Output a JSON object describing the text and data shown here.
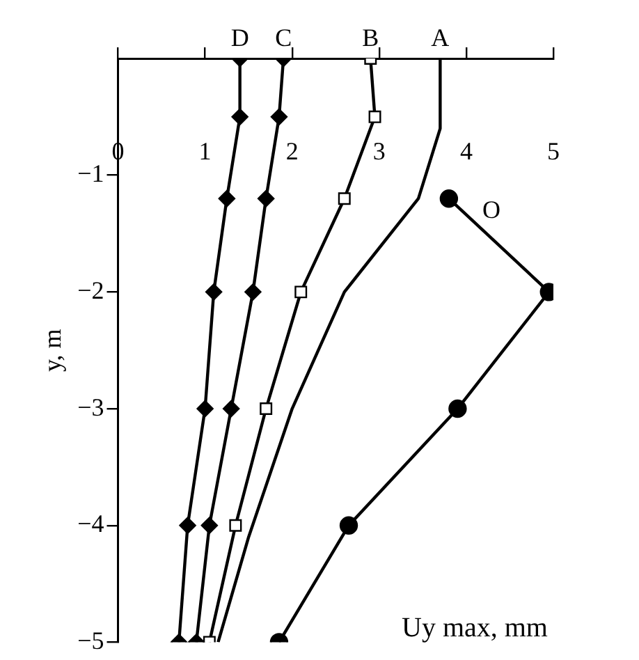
{
  "chart_data": {
    "type": "line",
    "xlabel": "Uy max, mm",
    "ylabel": "y, m",
    "xlim": [
      0,
      5
    ],
    "xticks": [
      0,
      1,
      2,
      3,
      4,
      5
    ],
    "ylim": [
      -5,
      0
    ],
    "yticks": [
      {
        "value": -5,
        "label": "−5"
      },
      {
        "value": -4,
        "label": "−4"
      },
      {
        "value": -3,
        "label": "−3"
      },
      {
        "value": -2,
        "label": "−2"
      },
      {
        "value": -1,
        "label": "−1"
      }
    ],
    "grid": false,
    "legend": "top",
    "series": [
      {
        "name": "D",
        "color": "#000000",
        "marker": "diamond",
        "x": [
          1.4,
          1.4,
          1.25,
          1.1,
          1.0,
          0.8,
          0.7
        ],
        "values": [
          0,
          -0.5,
          -1.2,
          -2,
          -3,
          -4,
          -5
        ]
      },
      {
        "name": "C",
        "color": "#000000",
        "marker": "diamond",
        "x": [
          1.9,
          1.85,
          1.7,
          1.55,
          1.3,
          1.05,
          0.9
        ],
        "values": [
          0,
          -0.5,
          -1.2,
          -2,
          -3,
          -4,
          -5
        ]
      },
      {
        "name": "B",
        "color": "#000000",
        "marker": "square",
        "x": [
          2.9,
          2.95,
          2.6,
          2.1,
          1.7,
          1.35,
          1.05
        ],
        "values": [
          0,
          -0.5,
          -1.2,
          -2,
          -3,
          -4,
          -5
        ]
      },
      {
        "name": "A",
        "color": "#000000",
        "marker": "none",
        "x": [
          3.7,
          3.7,
          3.45,
          2.6,
          2.0,
          1.5,
          1.15
        ],
        "values": [
          0,
          -0.6,
          -1.2,
          -2,
          -3,
          -4.1,
          -5
        ]
      },
      {
        "name": "O",
        "color": "#000000",
        "marker": "circle",
        "x": [
          3.8,
          4.95,
          3.9,
          2.65,
          1.85
        ],
        "values": [
          -1.2,
          -2,
          -3,
          -4,
          -5
        ]
      }
    ]
  }
}
